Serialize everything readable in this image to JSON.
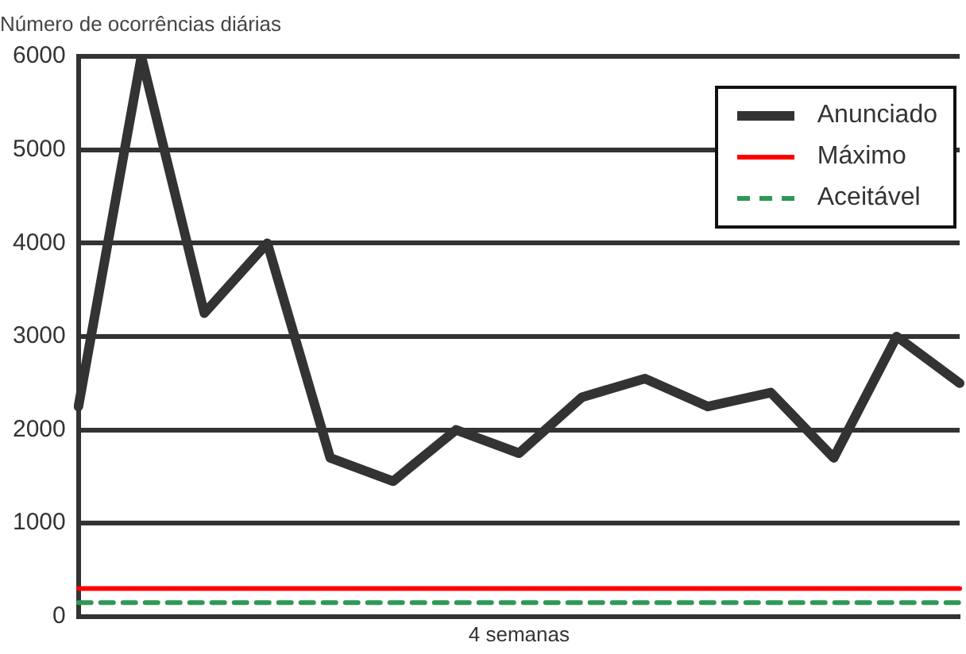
{
  "chart_data": {
    "type": "line",
    "ylabel": "Número de ocorrências diárias",
    "xlabel": "4 semanas",
    "categories": [
      null,
      null,
      null,
      null,
      null,
      null,
      null,
      null,
      null,
      null,
      null,
      null,
      null,
      null,
      null
    ],
    "series": [
      {
        "name": "Anunciado",
        "color": "#333333",
        "values": [
          2250,
          6000,
          3250,
          4000,
          1700,
          1450,
          2000,
          1750,
          2350,
          2550,
          2250,
          2400,
          1700,
          3000,
          2500
        ]
      },
      {
        "name": "Máximo",
        "color": "#ff0000",
        "values": [
          300,
          300,
          300,
          300,
          300,
          300,
          300,
          300,
          300,
          300,
          300,
          300,
          300,
          300,
          300
        ]
      },
      {
        "name": "Aceitável",
        "color": "#2e9955",
        "line_style": "dashed",
        "values": [
          150,
          150,
          150,
          150,
          150,
          150,
          150,
          150,
          150,
          150,
          150,
          150,
          150,
          150,
          150
        ]
      }
    ],
    "ylim": [
      0,
      6000
    ],
    "yticks": [
      0,
      1000,
      2000,
      3000,
      4000,
      5000,
      6000
    ],
    "grid": "y",
    "legend": "top right",
    "tick_labels": "y",
    "marker": "none"
  }
}
